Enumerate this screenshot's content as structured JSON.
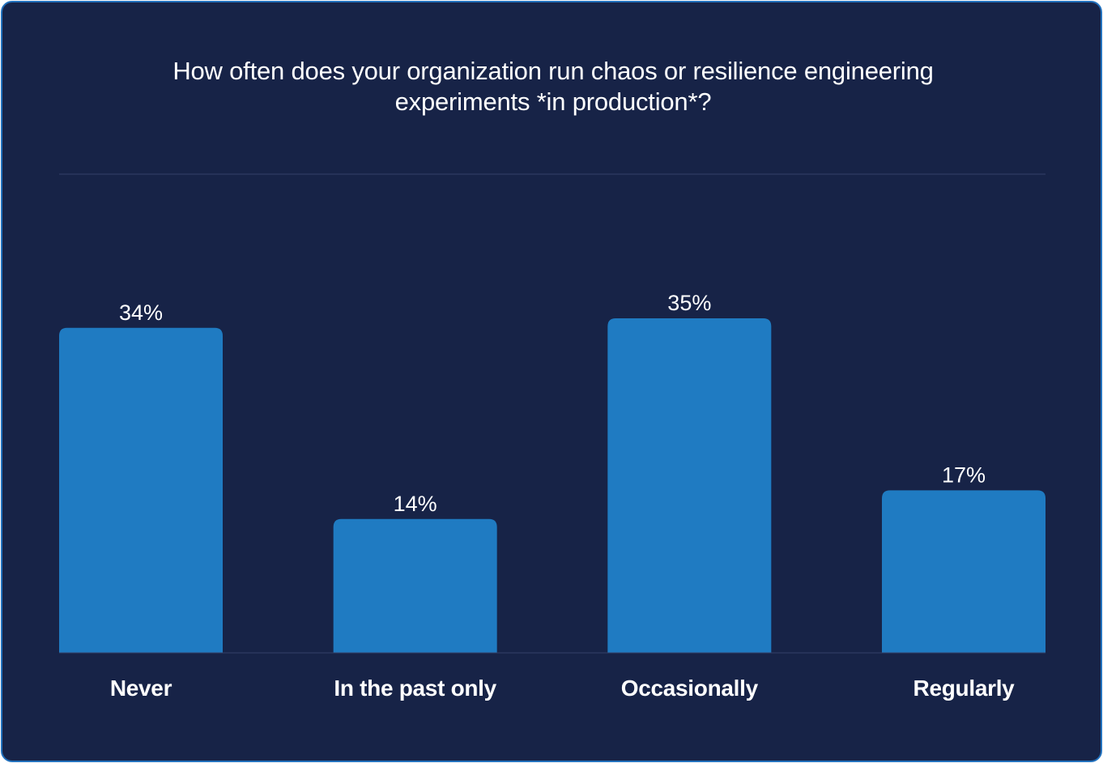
{
  "colors": {
    "background": "#172347",
    "border": "#2271bd",
    "bar": "#1f7bc2",
    "text": "#ffffff",
    "gridline": "#34416a"
  },
  "chart_data": {
    "type": "bar",
    "title": "How often does your organization run chaos or resilience engineering experiments *in production*?",
    "categories": [
      "Never",
      "In the past only",
      "Occasionally",
      "Regularly"
    ],
    "values": [
      34,
      14,
      35,
      17
    ],
    "value_labels": [
      "34%",
      "14%",
      "35%",
      "17%"
    ],
    "xlabel": "",
    "ylabel": "",
    "ylim": [
      0,
      50
    ],
    "grid": false,
    "legend": "none"
  }
}
